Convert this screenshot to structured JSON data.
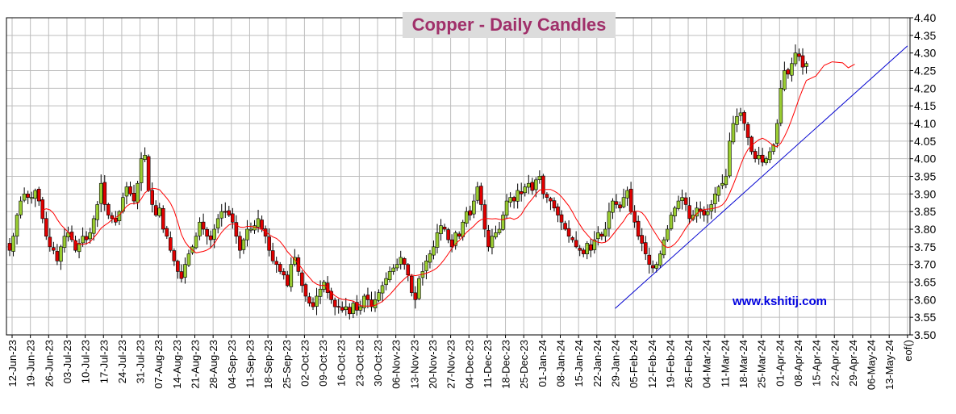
{
  "chart_data": {
    "type": "candlestick",
    "title": "Copper - Daily Candles",
    "watermark": "www.kshitij.com",
    "ylim": [
      3.5,
      4.4
    ],
    "yticks": [
      "3.50",
      "3.55",
      "3.60",
      "3.65",
      "3.70",
      "3.75",
      "3.80",
      "3.85",
      "3.90",
      "3.95",
      "4.00",
      "4.05",
      "4.10",
      "4.15",
      "4.20",
      "4.25",
      "4.30",
      "4.35",
      "4.40"
    ],
    "xtick_labels": [
      "12-Jun-23",
      "19-Jun-23",
      "26-Jun-23",
      "03-Jul-23",
      "10-Jul-23",
      "17-Jul-23",
      "24-Jul-23",
      "31-Jul-23",
      "07-Aug-23",
      "14-Aug-23",
      "21-Aug-23",
      "28-Aug-23",
      "04-Sep-23",
      "11-Sep-23",
      "18-Sep-23",
      "25-Sep-23",
      "02-Oct-23",
      "09-Oct-23",
      "16-Oct-23",
      "23-Oct-23",
      "30-Oct-23",
      "06-Nov-23",
      "13-Nov-23",
      "20-Nov-23",
      "27-Nov-23",
      "04-Dec-23",
      "11-Dec-23",
      "18-Dec-23",
      "25-Dec-23",
      "01-Jan-24",
      "08-Jan-24",
      "15-Jan-24",
      "22-Jan-24",
      "29-Jan-24",
      "05-Feb-24",
      "12-Feb-24",
      "19-Feb-24",
      "26-Feb-24",
      "04-Mar-24",
      "11-Mar-24",
      "18-Mar-24",
      "25-Mar-24",
      "01-Apr-24",
      "08-Apr-24",
      "15-Apr-24",
      "22-Apr-24",
      "29-Apr-24",
      "06-May-24",
      "13-May-24",
      "eof()"
    ],
    "candle_closes": [
      3.74,
      3.78,
      3.84,
      3.88,
      3.9,
      3.89,
      3.89,
      3.91,
      3.88,
      3.83,
      3.78,
      3.75,
      3.74,
      3.71,
      3.75,
      3.78,
      3.79,
      3.77,
      3.74,
      3.76,
      3.78,
      3.77,
      3.79,
      3.83,
      3.87,
      3.93,
      3.87,
      3.84,
      3.83,
      3.82,
      3.85,
      3.89,
      3.92,
      3.9,
      3.88,
      3.93,
      4.0,
      4.01,
      3.91,
      3.87,
      3.84,
      3.86,
      3.8,
      3.78,
      3.74,
      3.71,
      3.68,
      3.66,
      3.7,
      3.73,
      3.75,
      3.78,
      3.82,
      3.8,
      3.78,
      3.77,
      3.8,
      3.83,
      3.85,
      3.85,
      3.84,
      3.82,
      3.78,
      3.74,
      3.77,
      3.8,
      3.8,
      3.81,
      3.83,
      3.8,
      3.78,
      3.74,
      3.71,
      3.7,
      3.68,
      3.67,
      3.64,
      3.7,
      3.72,
      3.68,
      3.64,
      3.61,
      3.59,
      3.58,
      3.61,
      3.63,
      3.65,
      3.62,
      3.6,
      3.58,
      3.58,
      3.57,
      3.58,
      3.56,
      3.59,
      3.57,
      3.58,
      3.61,
      3.6,
      3.58,
      3.6,
      3.62,
      3.64,
      3.66,
      3.68,
      3.69,
      3.7,
      3.72,
      3.7,
      3.67,
      3.62,
      3.6,
      3.66,
      3.68,
      3.71,
      3.73,
      3.75,
      3.79,
      3.81,
      3.8,
      3.77,
      3.75,
      3.79,
      3.78,
      3.82,
      3.85,
      3.84,
      3.88,
      3.92,
      3.87,
      3.8,
      3.75,
      3.78,
      3.79,
      3.8,
      3.84,
      3.88,
      3.89,
      3.88,
      3.91,
      3.9,
      3.92,
      3.93,
      3.91,
      3.94,
      3.95,
      3.9,
      3.89,
      3.88,
      3.86,
      3.84,
      3.82,
      3.8,
      3.78,
      3.77,
      3.75,
      3.74,
      3.73,
      3.76,
      3.74,
      3.77,
      3.79,
      3.78,
      3.8,
      3.85,
      3.88,
      3.87,
      3.86,
      3.89,
      3.91,
      3.85,
      3.82,
      3.78,
      3.76,
      3.73,
      3.7,
      3.69,
      3.7,
      3.73,
      3.77,
      3.8,
      3.84,
      3.86,
      3.88,
      3.89,
      3.87,
      3.83,
      3.84,
      3.86,
      3.85,
      3.84,
      3.85,
      3.87,
      3.9,
      3.92,
      3.93,
      3.95,
      4.05,
      4.1,
      4.12,
      4.13,
      4.1,
      4.06,
      4.02,
      4.0,
      4.01,
      3.99,
      4.0,
      4.02,
      4.04,
      4.1,
      4.2,
      4.25,
      4.24,
      4.27,
      4.3,
      4.29,
      4.26,
      4.27
    ],
    "moving_average": {
      "color": "#ff0000"
    },
    "trendline": {
      "color": "#0000d0",
      "from": [
        "29-Jan-24",
        3.575
      ],
      "to": [
        "eof()",
        4.32
      ]
    }
  }
}
